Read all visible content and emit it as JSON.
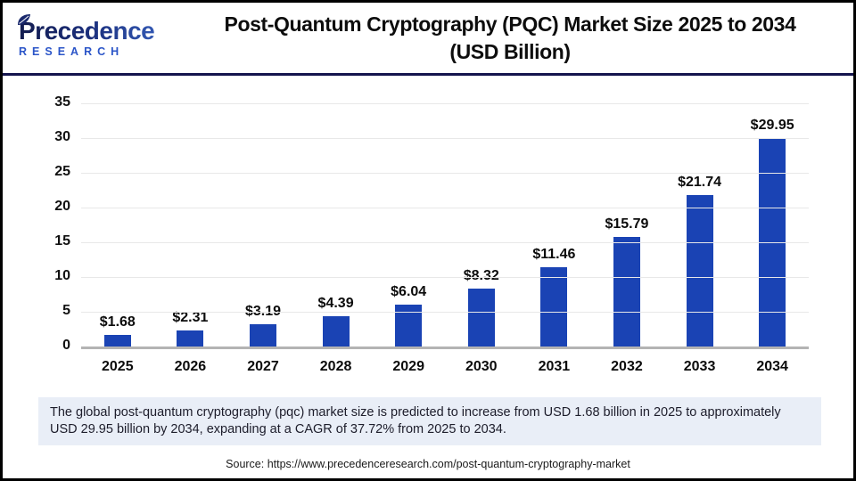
{
  "header": {
    "logo": {
      "name": "Precedence",
      "subtitle": "RESEARCH"
    },
    "title_line1": "Post-Quantum Cryptography (PQC) Market Size 2025 to 2034",
    "title_line2": "(USD Billion)"
  },
  "chart_data": {
    "type": "bar",
    "title": "Post-Quantum Cryptography (PQC) Market Size 2025 to 2034 (USD Billion)",
    "unit": "USD Billion",
    "categories": [
      "2025",
      "2026",
      "2027",
      "2028",
      "2029",
      "2030",
      "2031",
      "2032",
      "2033",
      "2034"
    ],
    "values": [
      1.68,
      2.31,
      3.19,
      4.39,
      6.04,
      8.32,
      11.46,
      15.79,
      21.74,
      29.95
    ],
    "labels": [
      "$1.68",
      "$2.31",
      "$3.19",
      "$4.39",
      "$6.04",
      "$8.32",
      "$11.46",
      "$15.79",
      "$21.74",
      "$29.95"
    ],
    "ylim": [
      0,
      35
    ],
    "yticks": [
      0,
      5,
      10,
      15,
      20,
      25,
      30,
      35
    ],
    "grid": true,
    "legend": "none",
    "bar_color": "#1a43b4",
    "gridline_color": "#e8e8e8",
    "axis_color": "#b3b3b3"
  },
  "note": "The global post-quantum cryptography (pqc) market size is predicted to increase from USD 1.68 billion in 2025 to approximately USD 29.95 billion by 2034, expanding at a CAGR of 37.72% from 2025 to 2034.",
  "source": "Source: https://www.precedenceresearch.com/post-quantum-cryptography-market",
  "colors": {
    "header_divider": "#14144d",
    "frame_border": "#000000",
    "note_background": "#e9eef7",
    "logo_navy": "#1b2a6e",
    "logo_blue": "#2b55c8"
  }
}
